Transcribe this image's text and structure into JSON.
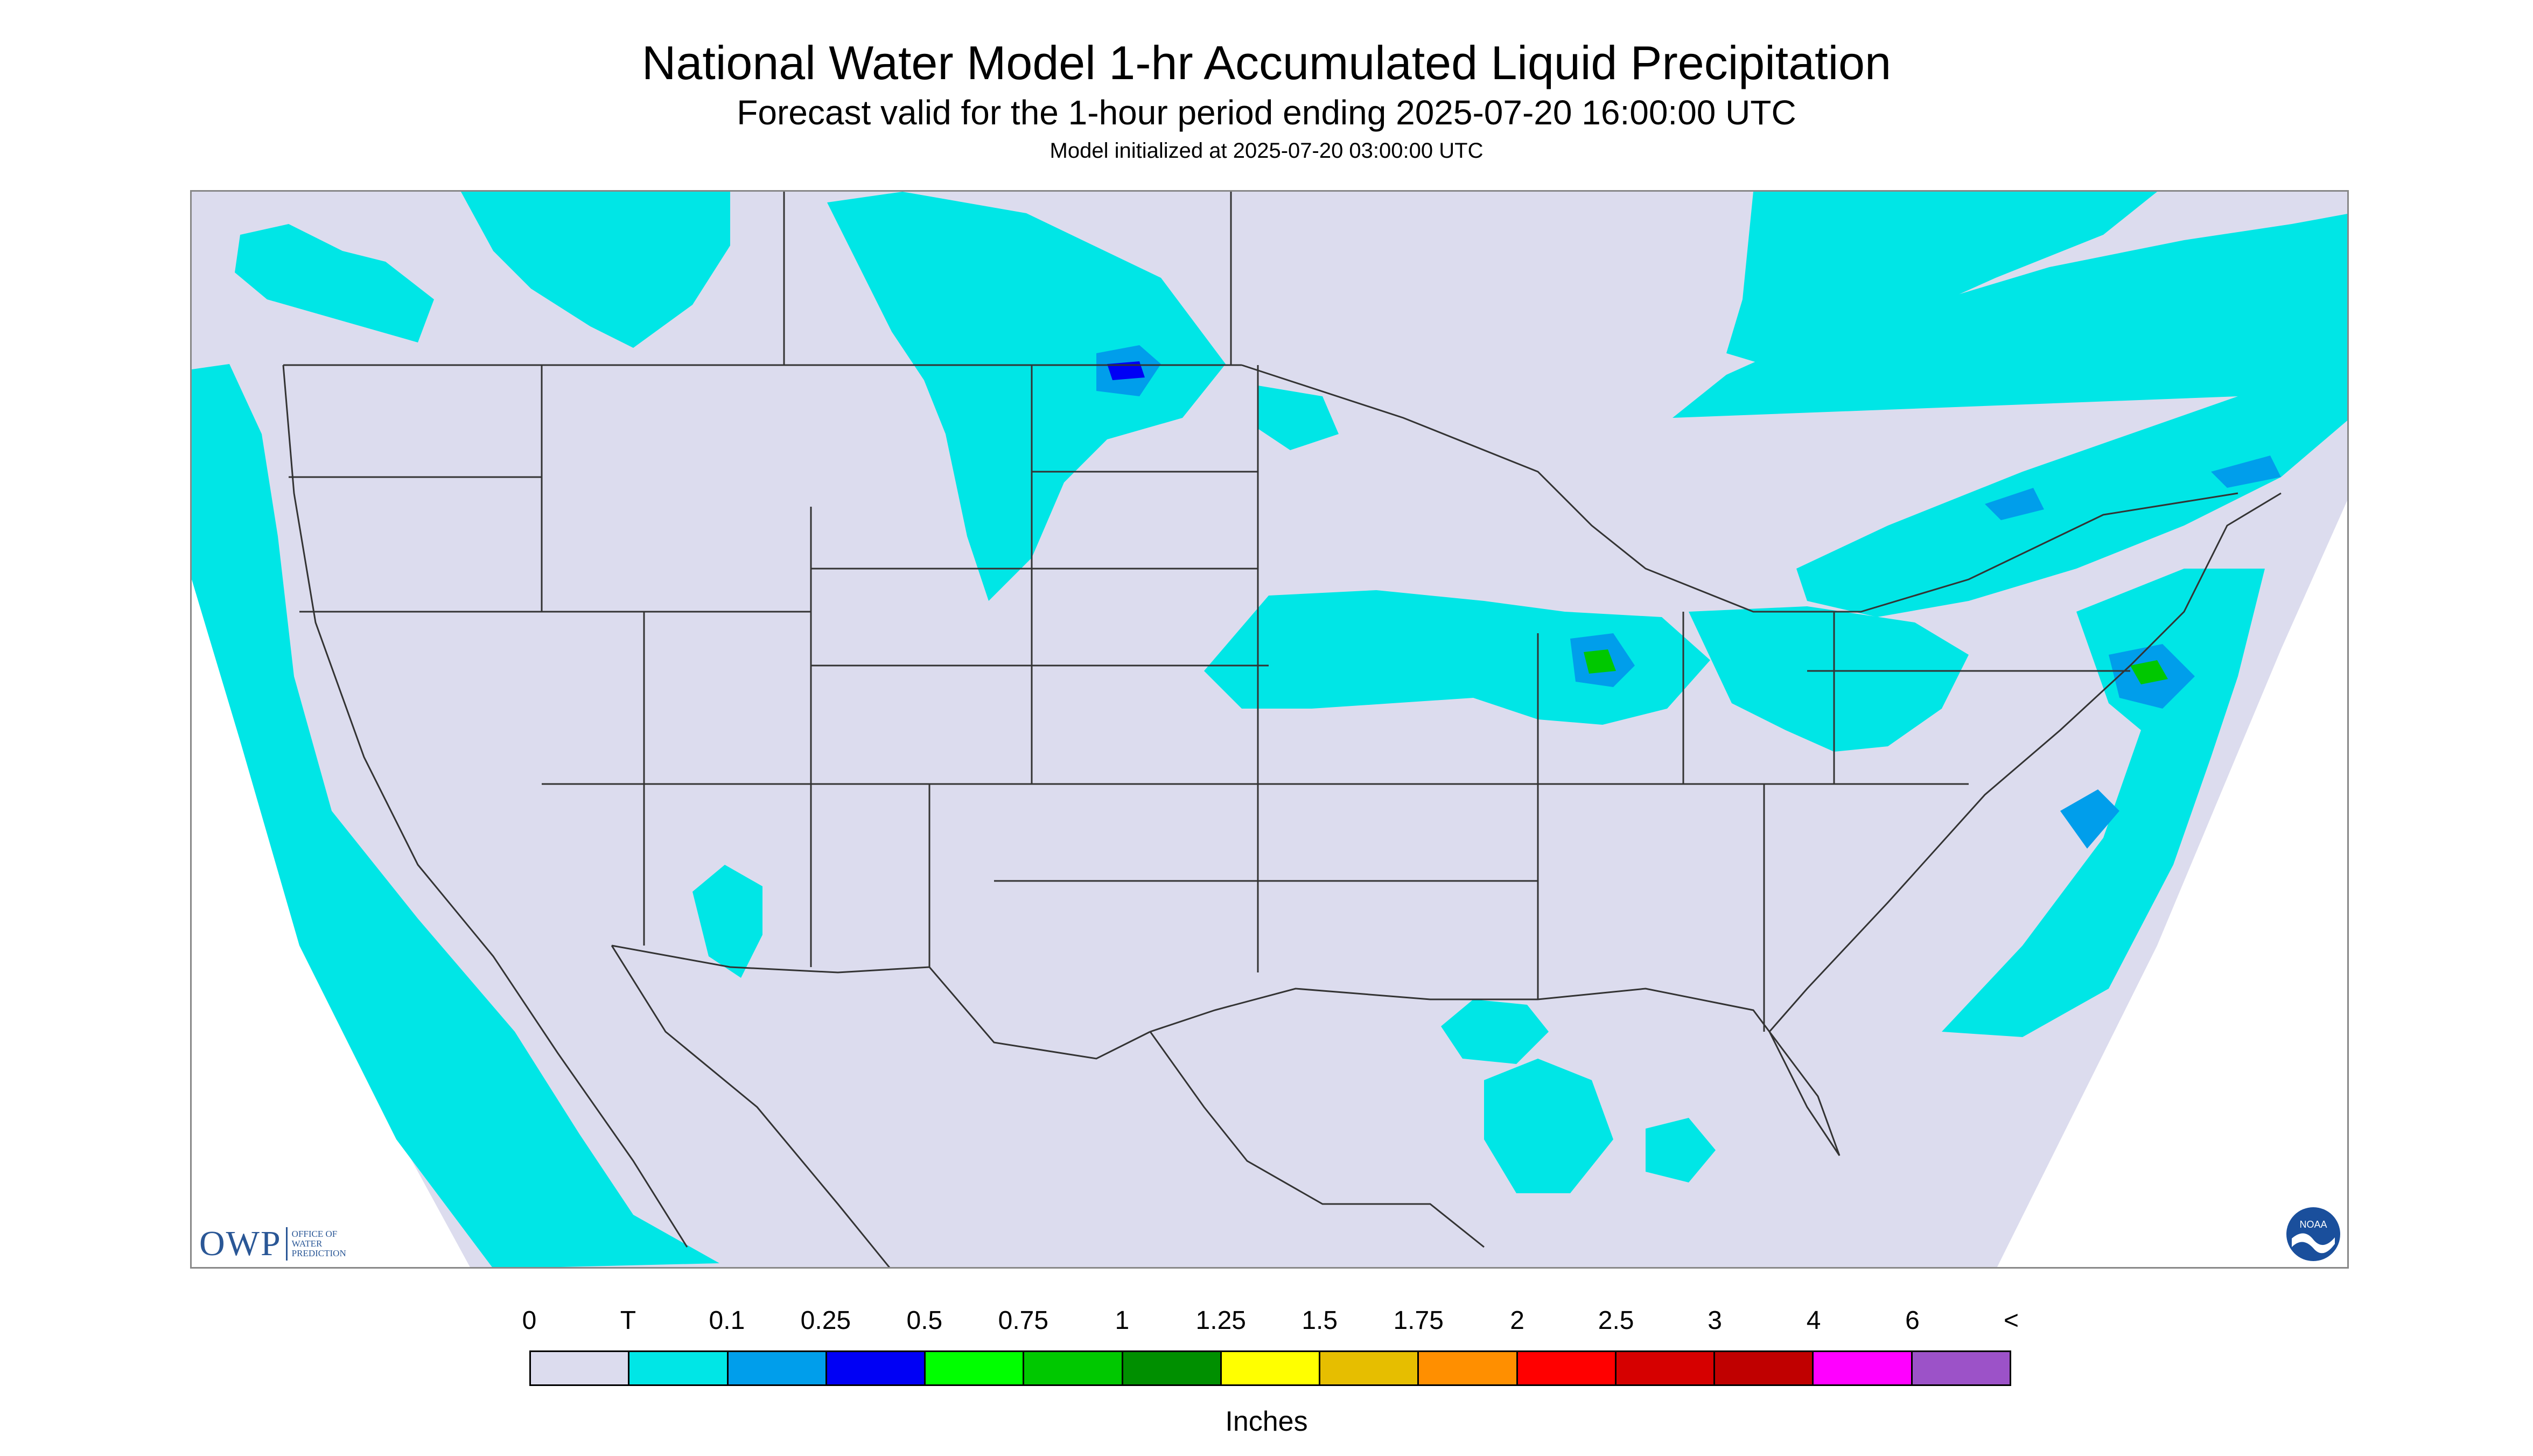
{
  "title": "National Water Model 1-hr Accumulated Liquid Precipitation",
  "subtitle": "Forecast valid for the 1-hour period ending 2025-07-20 16:00:00 UTC",
  "init_line": "Model initialized at 2025-07-20 03:00:00 UTC",
  "logos": {
    "owp_mark": "OWP",
    "owp_text": "OFFICE OF WATER PREDICTION",
    "noaa_text": "NOAA"
  },
  "legend": {
    "units": "Inches",
    "labels": [
      "0",
      "T",
      "0.1",
      "0.25",
      "0.5",
      "0.75",
      "1",
      "1.25",
      "1.5",
      "1.75",
      "2",
      "2.5",
      "3",
      "4",
      "6",
      "<"
    ],
    "colors": [
      "#dcdcee",
      "#00e6e6",
      "#009eeb",
      "#0000f5",
      "#00ff00",
      "#00c800",
      "#008f00",
      "#ffff00",
      "#e6be00",
      "#ff8f00",
      "#ff0000",
      "#d60000",
      "#c00000",
      "#ff00ff",
      "#9c52c8"
    ]
  },
  "map": {
    "background_color": "#dcdcee",
    "outside_domain_color": "#ffffff",
    "line_color": "#333333"
  }
}
